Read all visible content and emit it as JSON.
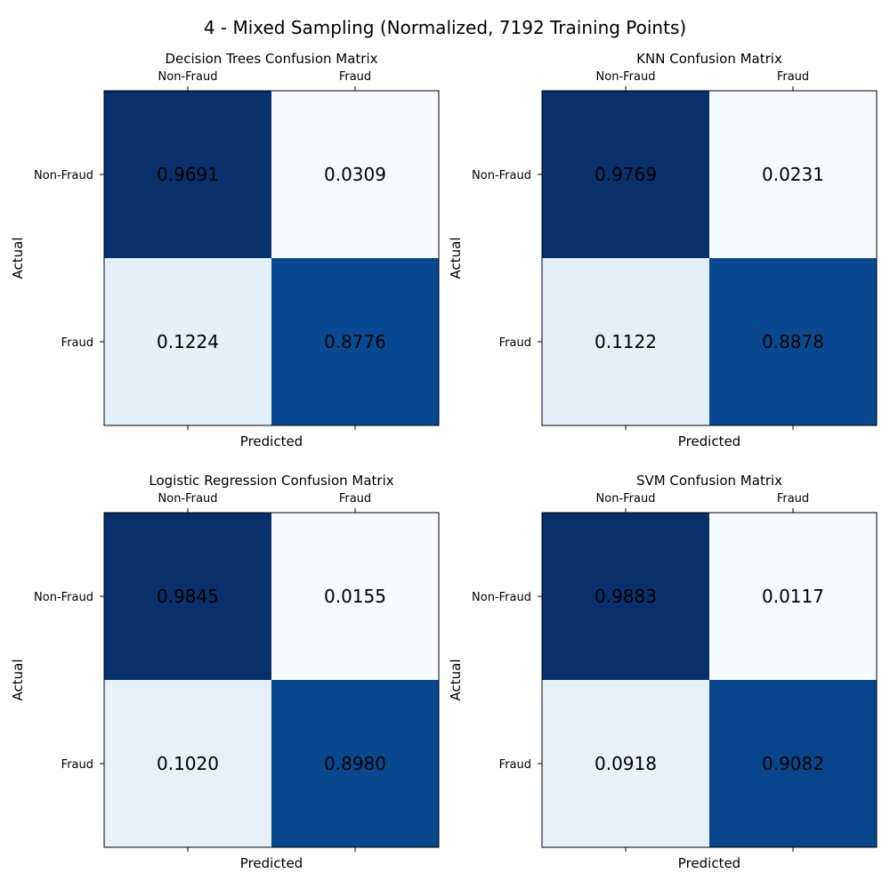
{
  "figure": {
    "title": "4 - Mixed Sampling (Normalized, 7192 Training Points)"
  },
  "chart_data": [
    {
      "type": "heatmap",
      "title": "Decision Trees Confusion Matrix",
      "xlabel": "Predicted",
      "ylabel": "Actual",
      "x_categories": [
        "Non-Fraud",
        "Fraud"
      ],
      "y_categories": [
        "Non-Fraud",
        "Fraud"
      ],
      "values": [
        [
          0.9691,
          0.0309
        ],
        [
          0.1224,
          0.8776
        ]
      ],
      "labels": [
        [
          "0.9691",
          "0.0309"
        ],
        [
          "0.1224",
          "0.8776"
        ]
      ],
      "colormap": "Blues",
      "x_ticks_position": "top",
      "grid": false
    },
    {
      "type": "heatmap",
      "title": "KNN Confusion Matrix",
      "xlabel": "Predicted",
      "ylabel": "Actual",
      "x_categories": [
        "Non-Fraud",
        "Fraud"
      ],
      "y_categories": [
        "Non-Fraud",
        "Fraud"
      ],
      "values": [
        [
          0.9769,
          0.0231
        ],
        [
          0.1122,
          0.8878
        ]
      ],
      "labels": [
        [
          "0.9769",
          "0.0231"
        ],
        [
          "0.1122",
          "0.8878"
        ]
      ],
      "colormap": "Blues",
      "x_ticks_position": "top",
      "grid": false
    },
    {
      "type": "heatmap",
      "title": "Logistic Regression Confusion Matrix",
      "xlabel": "Predicted",
      "ylabel": "Actual",
      "x_categories": [
        "Non-Fraud",
        "Fraud"
      ],
      "y_categories": [
        "Non-Fraud",
        "Fraud"
      ],
      "values": [
        [
          0.9845,
          0.0155
        ],
        [
          0.102,
          0.898
        ]
      ],
      "labels": [
        [
          "0.9845",
          "0.0155"
        ],
        [
          "0.1020",
          "0.8980"
        ]
      ],
      "colormap": "Blues",
      "x_ticks_position": "top",
      "grid": false
    },
    {
      "type": "heatmap",
      "title": "SVM Confusion Matrix",
      "xlabel": "Predicted",
      "ylabel": "Actual",
      "x_categories": [
        "Non-Fraud",
        "Fraud"
      ],
      "y_categories": [
        "Non-Fraud",
        "Fraud"
      ],
      "values": [
        [
          0.9883,
          0.0117
        ],
        [
          0.0918,
          0.9082
        ]
      ],
      "labels": [
        [
          "0.9883",
          "0.0117"
        ],
        [
          "0.0918",
          "0.9082"
        ]
      ],
      "colormap": "Blues",
      "x_ticks_position": "top",
      "grid": false
    }
  ]
}
